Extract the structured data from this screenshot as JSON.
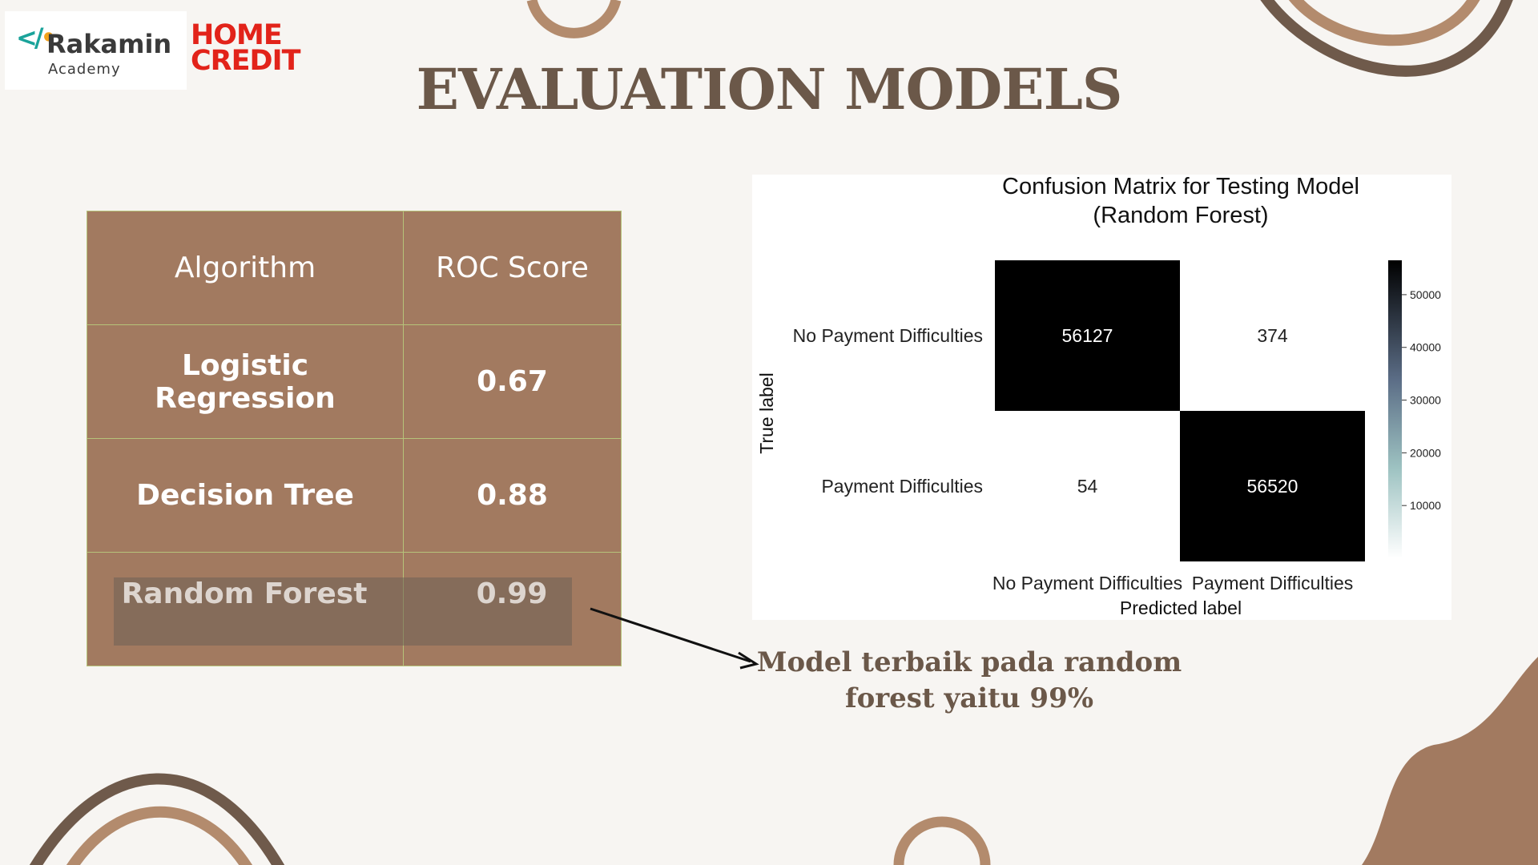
{
  "logos": {
    "rakamin_name": "Rakamin",
    "rakamin_sub": "Academy",
    "home_credit_line1": "HOME",
    "home_credit_line2": "CREDIT"
  },
  "title": "EVALUATION MODELS",
  "table": {
    "headers": [
      "Algorithm",
      "ROC Score"
    ],
    "rows": [
      {
        "algorithm": "Logistic Regression",
        "score": "0.67"
      },
      {
        "algorithm": "Decision Tree",
        "score": "0.88"
      },
      {
        "algorithm": "Random Forest",
        "score": "0.99"
      }
    ],
    "highlighted_row": "Random Forest"
  },
  "note": {
    "line1": "Model terbaik pada random",
    "line2": "forest yaitu 99%"
  },
  "colors": {
    "background": "#f7f5f2",
    "table_fill": "#a27a60",
    "title": "#6b5849",
    "decor_dark": "#6f5a4b",
    "decor_light": "#b38b6d"
  },
  "chart_data": {
    "type": "heatmap",
    "title": "Confusion Matrix for Testing Model",
    "subtitle": "(Random Forest)",
    "xlabel": "Predicted label",
    "ylabel": "True label",
    "x_categories": [
      "No Payment Difficulties",
      "Payment Difficulties"
    ],
    "y_categories": [
      "No Payment Difficulties",
      "Payment Difficulties"
    ],
    "values": [
      [
        56127,
        374
      ],
      [
        54,
        56520
      ]
    ],
    "colorbar": {
      "ticks": [
        10000,
        20000,
        30000,
        40000,
        50000
      ],
      "range": [
        0,
        56520
      ]
    }
  }
}
